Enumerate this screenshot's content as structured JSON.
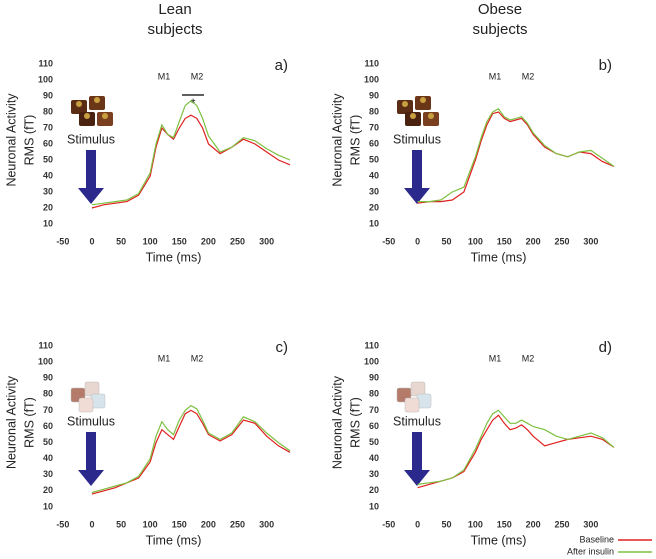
{
  "column_titles": [
    [
      "Lean",
      "subjects"
    ],
    [
      "Obese",
      "subjects"
    ]
  ],
  "chart_data": [
    {
      "type": "line",
      "label": "a)",
      "x_label": "Time (ms)",
      "y_label": [
        "Neuronal Activity",
        "RMS (fT)"
      ],
      "annotations": [
        "M1",
        "M2"
      ],
      "significance": "*",
      "stimulus_label": "Stimulus",
      "stimulus": "chocolate",
      "xlim": [
        -60,
        340
      ],
      "ylim": [
        5,
        120
      ],
      "xticks": [
        -50,
        0,
        50,
        100,
        150,
        200,
        250,
        300
      ],
      "yticks": [
        10,
        20,
        30,
        40,
        50,
        60,
        70,
        80,
        90,
        100,
        110
      ],
      "grid": false,
      "x": [
        0,
        20,
        40,
        60,
        80,
        100,
        110,
        120,
        130,
        140,
        150,
        160,
        170,
        180,
        190,
        200,
        220,
        240,
        260,
        280,
        300,
        320,
        340
      ],
      "series": [
        {
          "name": "Baseline",
          "color": "#e02020",
          "values": [
            20,
            22,
            23,
            24,
            28,
            40,
            58,
            70,
            66,
            63,
            70,
            76,
            78,
            76,
            70,
            60,
            54,
            58,
            63,
            60,
            55,
            50,
            47
          ]
        },
        {
          "name": "After insulin",
          "color": "#7cc040",
          "values": [
            22,
            23,
            24,
            25,
            29,
            42,
            60,
            72,
            66,
            64,
            74,
            84,
            87,
            84,
            76,
            65,
            55,
            58,
            64,
            62,
            57,
            53,
            50
          ]
        }
      ]
    },
    {
      "type": "line",
      "label": "b)",
      "x_label": "Time (ms)",
      "y_label": [
        "Neuronal Activity",
        "RMS (fT)"
      ],
      "annotations": [
        "M1",
        "M2"
      ],
      "stimulus_label": "Stimulus",
      "stimulus": "chocolate",
      "xlim": [
        -60,
        340
      ],
      "ylim": [
        5,
        120
      ],
      "xticks": [
        -50,
        0,
        50,
        100,
        150,
        200,
        250,
        300
      ],
      "yticks": [
        10,
        20,
        30,
        40,
        50,
        60,
        70,
        80,
        90,
        100,
        110
      ],
      "grid": false,
      "x": [
        0,
        20,
        40,
        60,
        80,
        100,
        110,
        120,
        130,
        140,
        150,
        160,
        170,
        180,
        190,
        200,
        220,
        240,
        260,
        280,
        300,
        320,
        340
      ],
      "series": [
        {
          "name": "Baseline",
          "color": "#e02020",
          "values": [
            23,
            24,
            24,
            25,
            30,
            50,
            62,
            72,
            79,
            80,
            76,
            74,
            75,
            76,
            72,
            66,
            58,
            54,
            52,
            55,
            54,
            49,
            46
          ]
        },
        {
          "name": "After insulin",
          "color": "#7cc040",
          "values": [
            24,
            24,
            25,
            30,
            33,
            52,
            64,
            74,
            80,
            82,
            77,
            75,
            76,
            77,
            73,
            67,
            59,
            54,
            52,
            55,
            56,
            51,
            46
          ]
        }
      ]
    },
    {
      "type": "line",
      "label": "c)",
      "x_label": "Time (ms)",
      "y_label": [
        "Neuronal Activity",
        "RMS (fT)"
      ],
      "annotations": [
        "M1",
        "M2"
      ],
      "stimulus_label": "Stimulus",
      "stimulus": "cubes",
      "xlim": [
        -60,
        340
      ],
      "ylim": [
        5,
        120
      ],
      "xticks": [
        -50,
        0,
        50,
        100,
        150,
        200,
        250,
        300
      ],
      "yticks": [
        10,
        20,
        30,
        40,
        50,
        60,
        70,
        80,
        90,
        100,
        110
      ],
      "grid": false,
      "x": [
        0,
        20,
        40,
        60,
        80,
        100,
        110,
        120,
        130,
        140,
        150,
        160,
        170,
        180,
        190,
        200,
        220,
        240,
        260,
        280,
        300,
        320,
        340
      ],
      "series": [
        {
          "name": "Baseline",
          "color": "#e02020",
          "values": [
            18,
            20,
            22,
            25,
            28,
            38,
            50,
            58,
            55,
            52,
            60,
            68,
            70,
            68,
            62,
            55,
            51,
            55,
            64,
            62,
            54,
            48,
            44
          ]
        },
        {
          "name": "After insulin",
          "color": "#7cc040",
          "values": [
            19,
            21,
            23,
            25,
            29,
            40,
            54,
            63,
            58,
            55,
            64,
            70,
            73,
            71,
            64,
            56,
            52,
            56,
            66,
            63,
            56,
            50,
            45
          ]
        }
      ]
    },
    {
      "type": "line",
      "label": "d)",
      "x_label": "Time (ms)",
      "y_label": [
        "Neuronal Activity",
        "RMS (fT)"
      ],
      "annotations": [
        "M1",
        "M2"
      ],
      "stimulus_label": "Stimulus",
      "stimulus": "cubes",
      "xlim": [
        -60,
        340
      ],
      "ylim": [
        5,
        120
      ],
      "xticks": [
        -50,
        0,
        50,
        100,
        150,
        200,
        250,
        300
      ],
      "yticks": [
        10,
        20,
        30,
        40,
        50,
        60,
        70,
        80,
        90,
        100,
        110
      ],
      "grid": false,
      "x": [
        0,
        20,
        40,
        60,
        80,
        100,
        110,
        120,
        130,
        140,
        150,
        160,
        170,
        180,
        190,
        200,
        220,
        240,
        260,
        280,
        300,
        320,
        340
      ],
      "series": [
        {
          "name": "Baseline",
          "color": "#e02020",
          "values": [
            22,
            24,
            26,
            28,
            32,
            44,
            52,
            58,
            64,
            67,
            62,
            58,
            59,
            61,
            58,
            54,
            48,
            50,
            52,
            53,
            54,
            52,
            47
          ]
        },
        {
          "name": "After insulin",
          "color": "#7cc040",
          "values": [
            24,
            25,
            26,
            28,
            33,
            46,
            54,
            62,
            68,
            70,
            66,
            62,
            62,
            64,
            62,
            60,
            58,
            54,
            52,
            54,
            56,
            53,
            47
          ]
        }
      ]
    }
  ]
}
